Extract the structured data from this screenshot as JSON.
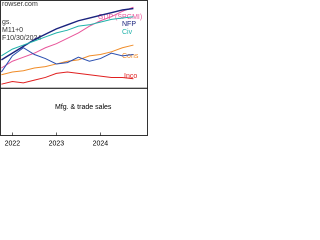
{
  "chart_data": {
    "type": "line",
    "annotations": [
      "rowser.com",
      "gs.",
      "M11+0",
      "F10/30/2024"
    ],
    "x": [
      2021.75,
      2022,
      2022.25,
      2022.5,
      2022.75,
      2023,
      2023.25,
      2023.5,
      2023.75,
      2024,
      2024.25,
      2024.5,
      2024.75
    ],
    "xlim": [
      2021.73,
      2025.07
    ],
    "xticks": [
      2022,
      2023,
      2024
    ],
    "ylim": [
      -3.5,
      6.5
    ],
    "zero_line": true,
    "series": [
      {
        "name": "GDP (SPGMI)",
        "color": "#e8559a",
        "values": [
          1.5,
          2.0,
          2.3,
          2.6,
          3.0,
          3.3,
          3.7,
          4.1,
          4.6,
          5.0,
          5.3,
          5.7,
          6.0
        ]
      },
      {
        "name": "NFP",
        "color": "#1a237e",
        "values": [
          2.1,
          2.6,
          3.1,
          3.6,
          4.0,
          4.4,
          4.7,
          5.0,
          5.2,
          5.4,
          5.6,
          5.8,
          5.9
        ]
      },
      {
        "name": "Civ",
        "color": "#20b2aa",
        "values": [
          2.4,
          2.9,
          3.2,
          3.5,
          3.8,
          4.1,
          4.3,
          4.6,
          4.7,
          4.9,
          5.1,
          5.2,
          5.3
        ]
      },
      {
        "name": "Cons",
        "color": "#f08c28",
        "values": [
          1.0,
          1.2,
          1.3,
          1.5,
          1.6,
          1.8,
          2.0,
          2.1,
          2.4,
          2.5,
          2.7,
          3.0,
          3.2
        ]
      },
      {
        "name": "Inco",
        "color": "#e02020",
        "values": [
          0.3,
          0.5,
          0.4,
          0.6,
          0.8,
          1.1,
          1.2,
          1.1,
          1.0,
          0.9,
          0.8,
          0.8,
          0.7
        ]
      },
      {
        "name": "Mfg. & trade sales",
        "color": "#2b4fb0",
        "values": [
          1.2,
          2.4,
          3.0,
          2.5,
          2.2,
          1.8,
          1.9,
          2.3,
          2.0,
          2.2,
          2.6,
          2.4,
          2.5
        ]
      }
    ]
  }
}
